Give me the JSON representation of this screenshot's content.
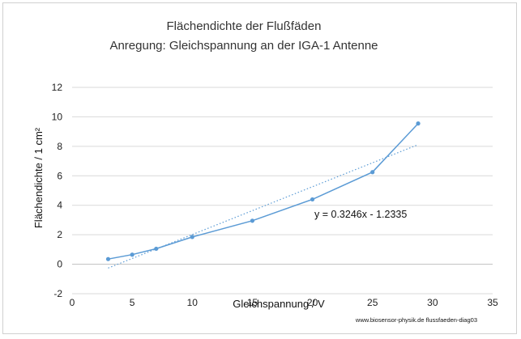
{
  "chart_data": {
    "type": "scatter",
    "title": "Flächendichte der Flußfäden",
    "subtitle": "Anregung:  Gleichspannung  an der IGA-1 Antenne",
    "xlabel": "Gleichspannung / V",
    "ylabel": "Flächendichte / 1 cm²",
    "xlim": [
      0,
      35
    ],
    "ylim": [
      -2,
      12
    ],
    "x_ticks": [
      "0",
      "5",
      "10",
      "15",
      "20",
      "25",
      "30",
      "35"
    ],
    "y_ticks": [
      "12",
      "10",
      "8",
      "6",
      "4",
      "2",
      "0",
      "-2"
    ],
    "grid": true,
    "legend": "none",
    "series": [
      {
        "x": [
          3,
          5,
          7,
          10,
          15,
          20,
          25,
          28.8
        ],
        "y": [
          0.35,
          0.65,
          1.05,
          1.85,
          2.95,
          4.4,
          6.25,
          9.55
        ],
        "color": "#5b9bd5",
        "style": "line+markers"
      }
    ],
    "trendline": {
      "type": "linear",
      "slope": 0.3246,
      "intercept": -1.2335,
      "x_range": [
        3,
        28.8
      ],
      "color": "#5b9bd5",
      "style": "dotted",
      "equation_label": "y = 0.3246x - 1.2335"
    },
    "credit": "www.biosensor-physik.de  flussfaeden-diag03"
  }
}
